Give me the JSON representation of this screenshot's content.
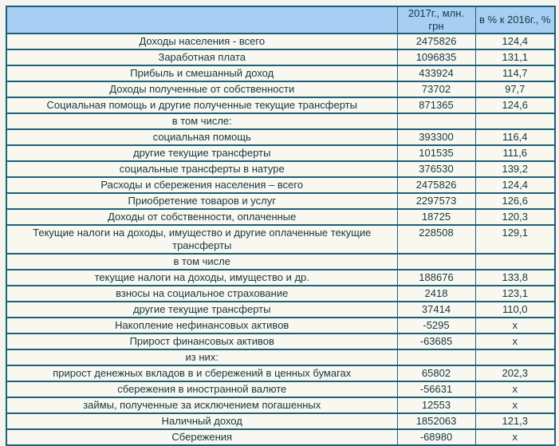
{
  "colors": {
    "header_bg": "#a9cef3",
    "border": "#1d6077",
    "row_bg": "#f8f8f1",
    "text": "#16363f",
    "page_bg": "#f5f5ef"
  },
  "table": {
    "columns": [
      "",
      "2017г., млн. грн",
      "в % к 2016г., %"
    ],
    "rows": [
      {
        "label": "Доходы населения - всего",
        "value": "2475826",
        "pct": "124,4"
      },
      {
        "label": "Заработная плата",
        "value": "1096835",
        "pct": "131,1"
      },
      {
        "label": "Прибыль и смешанный доход",
        "value": "433924",
        "pct": "114,7"
      },
      {
        "label": "Доходы полученные от собственности",
        "value": "73702",
        "pct": "97,7"
      },
      {
        "label": "Социальная помощь и другие полученные текущие трансферты",
        "value": "871365",
        "pct": "124,6"
      },
      {
        "label": "в том числе:",
        "value": "",
        "pct": ""
      },
      {
        "label": "социальная помощь",
        "value": "393300",
        "pct": "116,4"
      },
      {
        "label": "другие текущие трансферты",
        "value": "101535",
        "pct": "111,6"
      },
      {
        "label": "социальные трансферты в натуре",
        "value": "376530",
        "pct": "139,2"
      },
      {
        "label": "Расходы и сбережения населения – всего",
        "value": "2475826",
        "pct": "124,4"
      },
      {
        "label": "Приобретение товаров и услуг",
        "value": "2297573",
        "pct": "126,6"
      },
      {
        "label": "Доходы от собственности, оплаченные",
        "value": "18725",
        "pct": "120,3"
      },
      {
        "label": "Текущие налоги на доходы, имущество и другие оплаченные текущие трансферты",
        "value": "228508",
        "pct": "129,1"
      },
      {
        "label": "в том числе",
        "value": "",
        "pct": ""
      },
      {
        "label": "текущие налоги на доходы, имущество и др.",
        "value": "188676",
        "pct": "133,8"
      },
      {
        "label": "взносы на социальное страхование",
        "value": "2418",
        "pct": "123,1"
      },
      {
        "label": "другие текущие трансферты",
        "value": "37414",
        "pct": "110,0"
      },
      {
        "label": "Накопление нефинансовых активов",
        "value": "-5295",
        "pct": "х"
      },
      {
        "label": "Прирост финансовых активов",
        "value": "-63685",
        "pct": "х"
      },
      {
        "label": "из них:",
        "value": "",
        "pct": ""
      },
      {
        "label": "прирост денежных вкладов в и сбережений в ценных бумагах",
        "value": "65802",
        "pct": "202,3"
      },
      {
        "label": "сбережения в иностранной валюте",
        "value": "-56631",
        "pct": "х"
      },
      {
        "label": "займы, полученные за исключением погашенных",
        "value": "12553",
        "pct": "х"
      },
      {
        "label": "Наличный доход",
        "value": "1852063",
        "pct": "121,3"
      },
      {
        "label": "Сбережения",
        "value": "-68980",
        "pct": "х"
      }
    ]
  }
}
